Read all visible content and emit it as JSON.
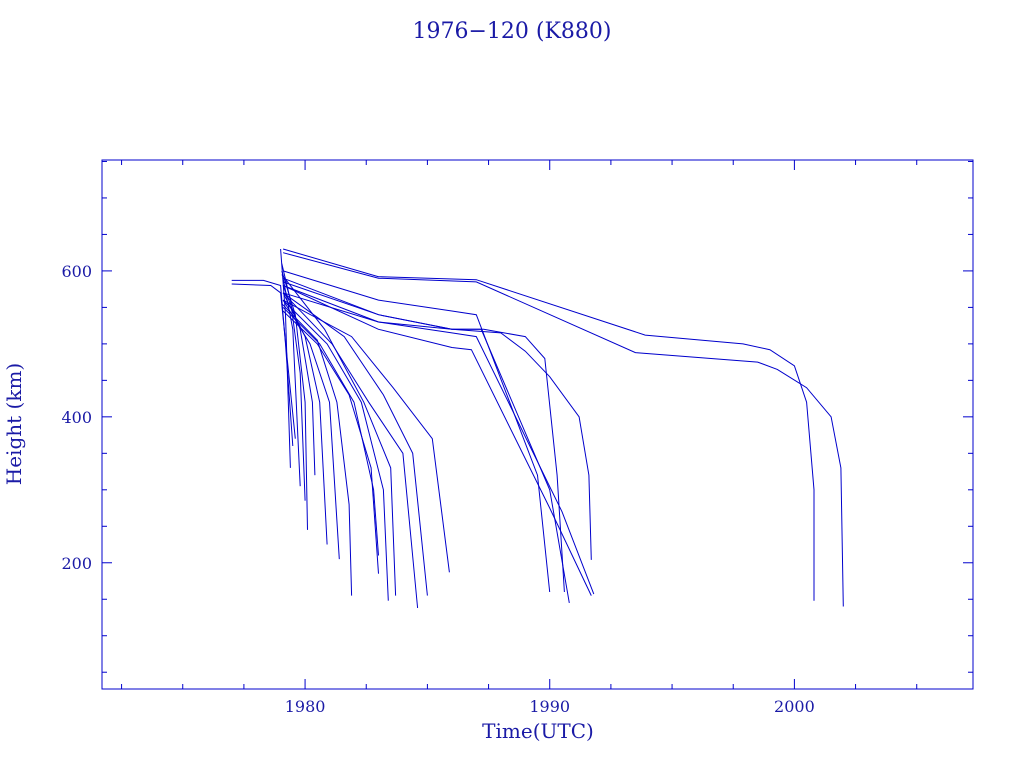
{
  "chart_data": {
    "type": "line",
    "title": "1976−120 (K880)",
    "xlabel": "Time(UTC)",
    "ylabel": "Height (km)",
    "xlim": [
      1971.7,
      2007.3
    ],
    "ylim": [
      27,
      752
    ],
    "x_ticks": [
      1980,
      1990,
      2000
    ],
    "x_tick_labels": [
      "1980",
      "1990",
      "2000"
    ],
    "y_ticks": [
      200,
      400,
      600
    ],
    "y_tick_labels": [
      "200",
      "400",
      "600"
    ],
    "grid": false,
    "legend": "none",
    "color": "#0000cc",
    "series": [
      {
        "x": [
          1977.0,
          1978.3,
          1979.0,
          1979.2,
          1979.5
        ],
        "y": [
          587,
          587,
          580,
          500,
          360
        ]
      },
      {
        "x": [
          1977.0,
          1978.6,
          1979.0,
          1979.3,
          1979.6
        ],
        "y": [
          582,
          580,
          570,
          470,
          370
        ]
      },
      {
        "x": [
          1979.0,
          1979.2,
          1979.4
        ],
        "y": [
          630,
          540,
          330
        ]
      },
      {
        "x": [
          1979.05,
          1979.4,
          1979.8,
          1980.0
        ],
        "y": [
          610,
          560,
          460,
          285
        ]
      },
      {
        "x": [
          1979.1,
          1979.5,
          1979.8
        ],
        "y": [
          590,
          520,
          305
        ]
      },
      {
        "x": [
          1979.05,
          1979.6,
          1980.0,
          1980.1
        ],
        "y": [
          600,
          540,
          420,
          245
        ]
      },
      {
        "x": [
          1979.1,
          1979.8,
          1980.3,
          1980.4
        ],
        "y": [
          580,
          520,
          420,
          320
        ]
      },
      {
        "x": [
          1979.1,
          1980.0,
          1980.6,
          1980.9
        ],
        "y": [
          570,
          510,
          420,
          225
        ]
      },
      {
        "x": [
          1979.1,
          1980.2,
          1981.0,
          1981.4
        ],
        "y": [
          560,
          500,
          420,
          205
        ]
      },
      {
        "x": [
          1979.05,
          1980.5,
          1981.3,
          1981.8,
          1981.9
        ],
        "y": [
          555,
          505,
          420,
          280,
          155
        ]
      },
      {
        "x": [
          1979.1,
          1980.5,
          1981.8,
          1982.7,
          1983.0
        ],
        "y": [
          545,
          500,
          430,
          330,
          185
        ]
      },
      {
        "x": [
          1979.1,
          1980.6,
          1982.0,
          1982.8,
          1983.0
        ],
        "y": [
          550,
          500,
          420,
          300,
          210
        ]
      },
      {
        "x": [
          1979.1,
          1980.9,
          1982.3,
          1983.2,
          1983.4
        ],
        "y": [
          560,
          500,
          420,
          300,
          148
        ]
      },
      {
        "x": [
          1979.05,
          1980.8,
          1982.4,
          1983.5,
          1983.7
        ],
        "y": [
          595,
          520,
          420,
          330,
          155
        ]
      },
      {
        "x": [
          1979.1,
          1981.1,
          1982.6,
          1984.0,
          1984.6
        ],
        "y": [
          570,
          500,
          420,
          350,
          138
        ]
      },
      {
        "x": [
          1979.1,
          1981.6,
          1983.2,
          1984.4,
          1985.0
        ],
        "y": [
          570,
          510,
          430,
          350,
          155
        ]
      },
      {
        "x": [
          1979.1,
          1981.9,
          1983.6,
          1985.2,
          1985.9
        ],
        "y": [
          560,
          510,
          440,
          370,
          187
        ]
      },
      {
        "x": [
          1979.1,
          1983.0,
          1986.0,
          1987.0,
          1989.5,
          1990.0
        ],
        "y": [
          600,
          560,
          545,
          540,
          320,
          160
        ]
      },
      {
        "x": [
          1979.1,
          1983.0,
          1986.0,
          1987.2,
          1990.0,
          1990.8
        ],
        "y": [
          590,
          540,
          520,
          520,
          300,
          145
        ]
      },
      {
        "x": [
          1979.1,
          1983.0,
          1986.0,
          1987.0,
          1990.5,
          1991.8
        ],
        "y": [
          570,
          530,
          515,
          510,
          270,
          157
        ]
      },
      {
        "x": [
          1979.1,
          1983.0,
          1986.0,
          1986.8,
          1990.0,
          1991.7
        ],
        "y": [
          580,
          520,
          495,
          492,
          275,
          155
        ]
      },
      {
        "x": [
          1979.1,
          1983.0,
          1986.0,
          1987.3,
          1989.0,
          1989.8,
          1990.3,
          1990.6
        ],
        "y": [
          585,
          540,
          520,
          520,
          510,
          480,
          320,
          160
        ]
      },
      {
        "x": [
          1979.1,
          1983.0,
          1986.0,
          1988.0,
          1989.0,
          1990.0,
          1991.2,
          1991.6,
          1991.7
        ],
        "y": [
          580,
          530,
          520,
          515,
          490,
          455,
          400,
          320,
          204
        ]
      },
      {
        "x": [
          1979.1,
          1983.0,
          1987.0,
          1993.9,
          1997.9,
          1999.0,
          2000.0,
          2000.5,
          2000.8,
          2000.8
        ],
        "y": [
          630,
          592,
          588,
          512,
          500,
          492,
          470,
          420,
          300,
          148
        ]
      },
      {
        "x": [
          1979.1,
          1983.0,
          1987.0,
          1993.5,
          1998.5,
          1999.3,
          2000.5,
          2001.5,
          2001.9,
          2002.0
        ],
        "y": [
          625,
          590,
          585,
          488,
          475,
          465,
          440,
          400,
          330,
          140
        ]
      }
    ]
  }
}
